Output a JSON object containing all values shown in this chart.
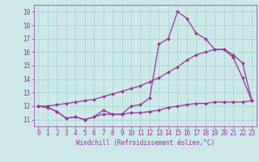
{
  "xlabel": "Windchill (Refroidissement éolien,°C)",
  "bg_color": "#cce8e8",
  "line_color": "#993399",
  "xlim": [
    -0.5,
    23.5
  ],
  "ylim": [
    10.5,
    19.5
  ],
  "yticks": [
    11,
    12,
    13,
    14,
    15,
    16,
    17,
    18,
    19
  ],
  "xticks": [
    0,
    1,
    2,
    3,
    4,
    5,
    6,
    7,
    8,
    9,
    10,
    11,
    12,
    13,
    14,
    15,
    16,
    17,
    18,
    19,
    20,
    21,
    22,
    23
  ],
  "series1": [
    12.0,
    11.9,
    11.6,
    11.1,
    11.2,
    11.0,
    11.2,
    11.7,
    11.4,
    11.4,
    12.0,
    12.1,
    12.6,
    16.6,
    17.0,
    19.0,
    18.5,
    17.4,
    17.0,
    16.2,
    16.2,
    15.6,
    14.1,
    12.4
  ],
  "series2": [
    12.0,
    11.9,
    11.6,
    11.1,
    11.2,
    11.0,
    11.2,
    11.4,
    11.4,
    11.4,
    11.5,
    11.5,
    11.6,
    11.7,
    11.9,
    12.0,
    12.1,
    12.2,
    12.2,
    12.3,
    12.3,
    12.3,
    12.3,
    12.4
  ],
  "series3": [
    12.0,
    12.0,
    12.1,
    12.2,
    12.3,
    12.4,
    12.5,
    12.7,
    12.9,
    13.1,
    13.3,
    13.5,
    13.8,
    14.1,
    14.5,
    14.9,
    15.4,
    15.8,
    16.0,
    16.2,
    16.2,
    15.8,
    15.2,
    12.4
  ],
  "xlabel_fontsize": 5.5,
  "tick_fontsize": 5.5,
  "marker_size": 2.0,
  "line_width": 0.9
}
